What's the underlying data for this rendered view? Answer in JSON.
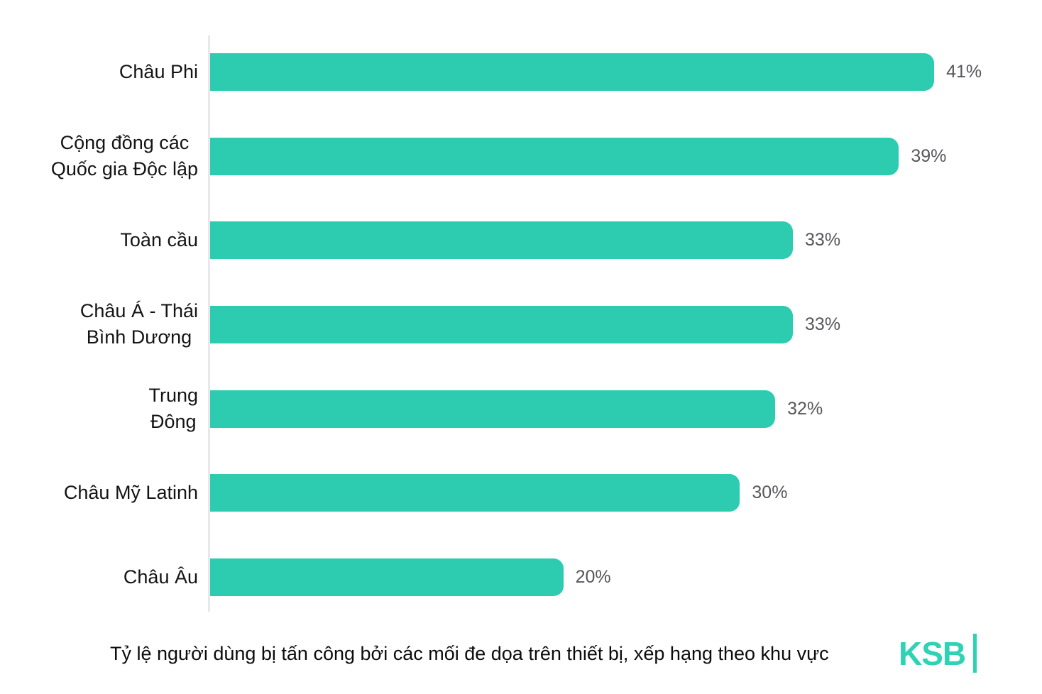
{
  "chart_data": {
    "type": "bar",
    "orientation": "horizontal",
    "categories": [
      "Châu Phi",
      "Cộng đồng các\nQuốc gia Độc lập",
      "Toàn cầu",
      "Châu Á - Thái\nBình Dương",
      "Trung\nĐông",
      "Châu Mỹ Latinh",
      "Châu Âu"
    ],
    "values": [
      41,
      39,
      33,
      33,
      32,
      30,
      20
    ],
    "value_labels": [
      "41%",
      "39%",
      "33%",
      "33%",
      "32%",
      "30%",
      "20%"
    ],
    "xlim": [
      0,
      41
    ],
    "grid": false,
    "legend": "none",
    "title": "",
    "caption": "Tỷ lệ người dùng bị tấn công bởi các mối đe dọa trên thiết bị, xếp hạng theo khu vực"
  },
  "caption": "Tỷ lệ người dùng bị tấn công bởi các mối đe dọa trên thiết bị, xếp hạng theo khu vực",
  "logo": {
    "text": "KSB"
  },
  "colors": {
    "bar": "#2dccb1",
    "logo": "#2ed3b6",
    "axis": "#e7e7ec",
    "category_label": "#141415",
    "value_label": "#56575b",
    "background": "#ffffff"
  }
}
